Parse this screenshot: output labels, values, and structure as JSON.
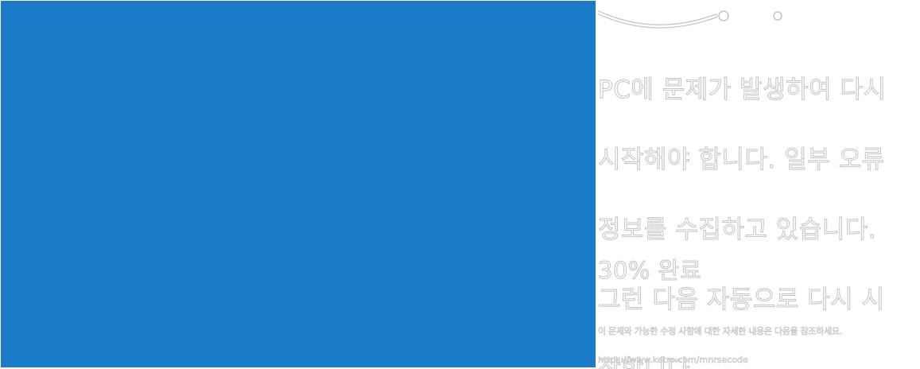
{
  "screen": {
    "background_color": "#1a7bc9",
    "text_color": "#ffffff",
    "emoticon": "frown-emoticon"
  },
  "bsod": {
    "message_lines": [
      "PC에 문제가 발생하여 다시",
      "시작해야 합니다. 일부 오류",
      "정보를 수집하고 있습니다.",
      "그런 다음 자동으로 다시 시",
      "작합니다."
    ],
    "progress_text": "30% 완료",
    "info_text": "이 문제와 가능한 수정 사항에 대한 자세한 내용은 다음을 참조하세요.",
    "url": "https://www.ketro.com/mnrsecode"
  }
}
